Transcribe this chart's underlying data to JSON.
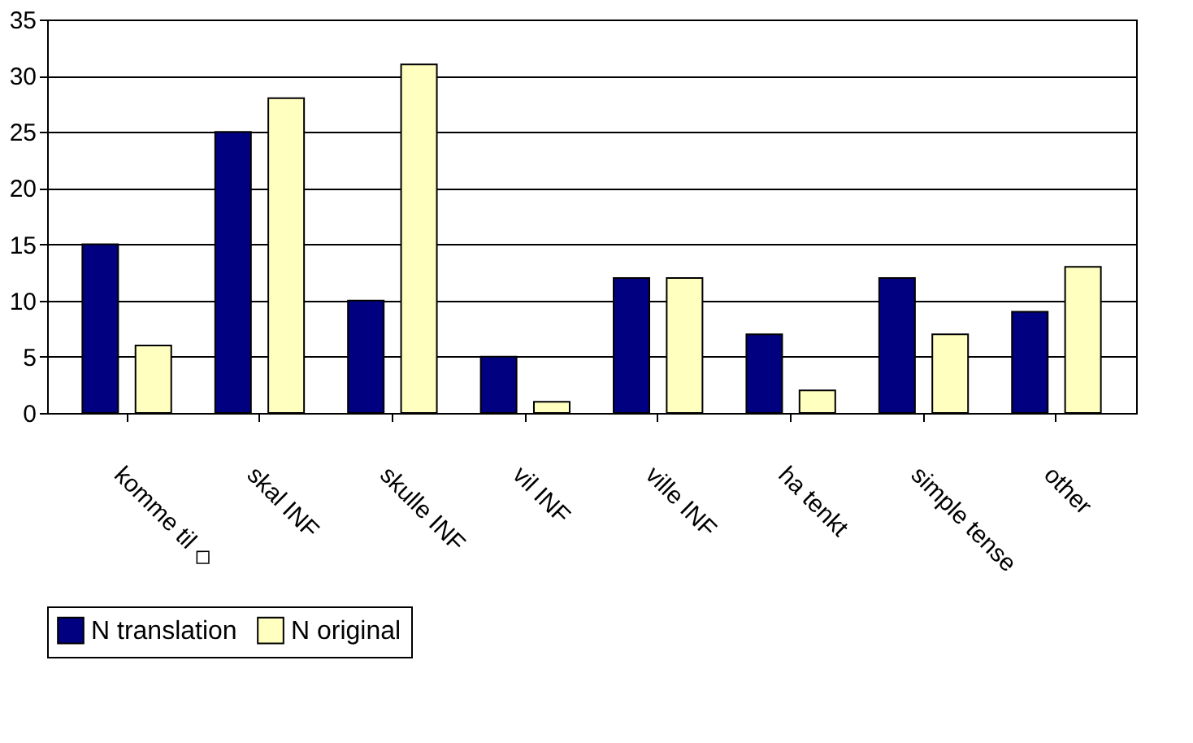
{
  "chart_data": {
    "type": "bar",
    "categories": [
      "komme til ◇",
      "skal INF",
      "skulle INF",
      "vil INF",
      "ville INF",
      "ha tenkt",
      "simple tense",
      "other"
    ],
    "series": [
      {
        "name": "N translation",
        "color": "#000080",
        "values": [
          15,
          25,
          10,
          5,
          12,
          7,
          12,
          9
        ]
      },
      {
        "name": "N original",
        "color": "#ffffc0",
        "values": [
          6,
          28,
          31,
          1,
          12,
          2,
          7,
          13
        ]
      }
    ],
    "ylim": [
      0,
      35
    ],
    "yticks": [
      0,
      5,
      10,
      15,
      20,
      25,
      30,
      35
    ],
    "grid": "y",
    "legend": "bottom"
  }
}
